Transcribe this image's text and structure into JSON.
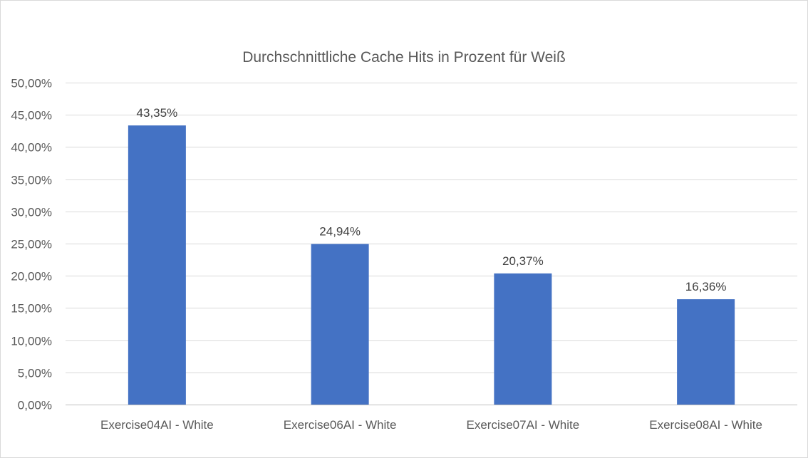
{
  "chart_data": {
    "type": "bar",
    "title": "Durchschnittliche Cache Hits in Prozent für Weiß",
    "xlabel": "",
    "ylabel": "",
    "categories": [
      "Exercise04AI - White",
      "Exercise06AI - White",
      "Exercise07AI - White",
      "Exercise08AI - White"
    ],
    "values": [
      43.35,
      24.94,
      20.37,
      16.36
    ],
    "data_labels": [
      "43,35%",
      "24,94%",
      "20,37%",
      "16,36%"
    ],
    "ylim": [
      0,
      50
    ],
    "y_ticks": [
      0,
      5,
      10,
      15,
      20,
      25,
      30,
      35,
      40,
      45,
      50
    ],
    "y_tick_labels": [
      "0,00%",
      "5,00%",
      "10,00%",
      "15,00%",
      "20,00%",
      "25,00%",
      "30,00%",
      "35,00%",
      "40,00%",
      "45,00%",
      "50,00%"
    ],
    "grid": true,
    "legend": "none",
    "bar_color": "#4472c4"
  }
}
